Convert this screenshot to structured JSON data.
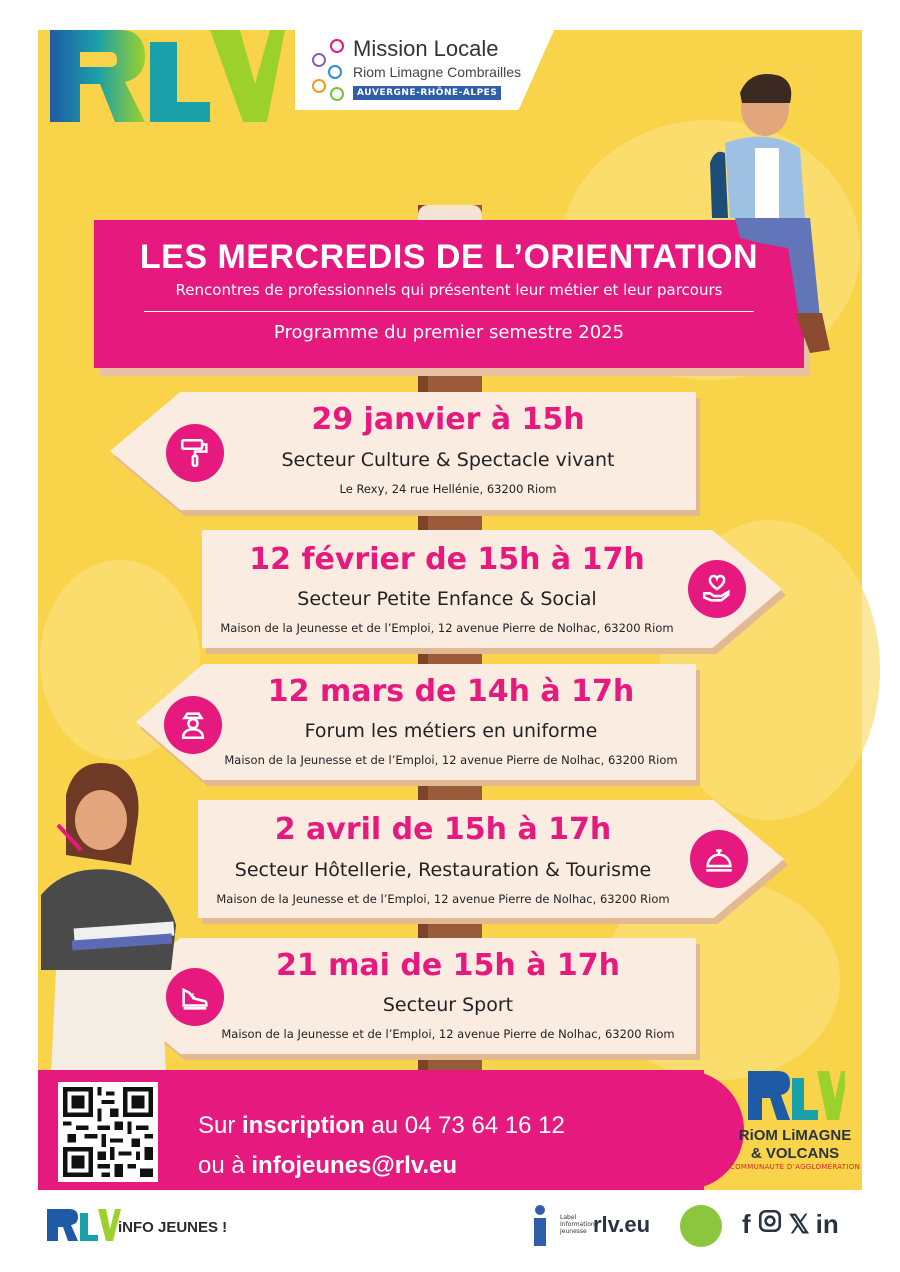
{
  "header": {
    "logo_text": "RLV",
    "mission_title": "Mission Locale",
    "mission_subtitle": "Riom Limagne Combrailles",
    "mission_region": "AUVERGNE-RHÔNE-ALPES"
  },
  "banner": {
    "title": "LES MERCREDIS DE L’ORIENTATION",
    "subtitle": "Rencontres de professionnels qui présentent leur métier et leur parcours",
    "program": "Programme du premier semestre 2025"
  },
  "events": [
    {
      "date": "29 janvier à 15h",
      "sector": "Secteur Culture & Spectacle vivant",
      "address": "Le Rexy, 24 rue Hellénie, 63200 Riom",
      "icon": "paint-roller-icon"
    },
    {
      "date": "12 février de 15h à 17h",
      "sector": "Secteur Petite Enfance & Social",
      "address": "Maison de la Jeunesse et de l’Emploi, 12 avenue Pierre de Nolhac, 63200 Riom",
      "icon": "heart-hand-icon"
    },
    {
      "date": "12 mars de 14h à 17h",
      "sector": "Forum les métiers en uniforme",
      "address": "Maison de la Jeunesse et de l’Emploi, 12 avenue Pierre de Nolhac, 63200 Riom",
      "icon": "officer-icon"
    },
    {
      "date": "2 avril de 15h à 17h",
      "sector": "Secteur Hôtellerie, Restauration & Tourisme",
      "address": "Maison de la Jeunesse et de l’Emploi, 12 avenue Pierre de Nolhac, 63200 Riom",
      "icon": "service-bell-icon"
    },
    {
      "date": "21 mai de 15h à 17h",
      "sector": "Secteur Sport",
      "address": "Maison de la Jeunesse et de l’Emploi, 12 avenue Pierre de Nolhac, 63200 Riom",
      "icon": "sneaker-icon"
    }
  ],
  "contact": {
    "line1_prefix": "Sur ",
    "line1_bold": "inscription",
    "line1_mid": " au ",
    "phone": "04 73 64 16 12",
    "line2_prefix": "ou à ",
    "email": "infojeunes@rlv.eu"
  },
  "rlv_logo": {
    "name_line1": "RiOM LiMAGNE",
    "name_line2": "& VOLCANS",
    "community": "COMMUNAUTÉ D’AGGLOMÉRATION"
  },
  "footer": {
    "info_label": "iNFO JEUNES !",
    "label_text": "Label Information Jeunesse",
    "site": "rlv.eu",
    "social_icons": [
      "facebook-icon",
      "instagram-icon",
      "x-icon",
      "linkedin-icon"
    ]
  },
  "colors": {
    "pink": "#e6197f",
    "yellow": "#f9d44a",
    "sign": "#fbece2",
    "post": "#9a5b3a"
  }
}
